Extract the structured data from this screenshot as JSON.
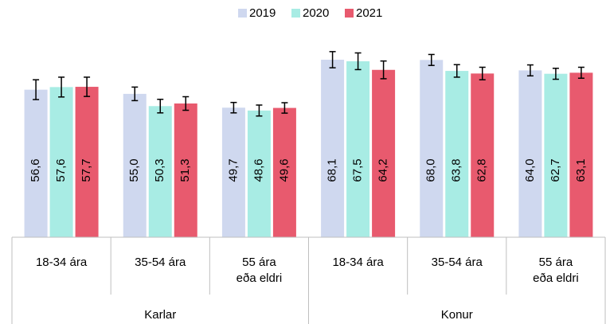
{
  "chart_data": {
    "type": "bar",
    "groups": [
      "Karlar",
      "Konur"
    ],
    "categories": [
      [
        "18-34 ára"
      ],
      [
        "35-54 ára"
      ],
      [
        "55 ára",
        "eða eldri"
      ],
      [
        "18-34 ára"
      ],
      [
        "35-54 ára"
      ],
      [
        "55 ára",
        "eða eldri"
      ]
    ],
    "series": [
      {
        "name": "2019",
        "color": "#cfd8ef",
        "values": [
          56.6,
          55.0,
          49.7,
          68.1,
          68.0,
          64.0
        ],
        "value_labels": [
          "56,6",
          "55,0",
          "49,7",
          "68,1",
          "68,0",
          "64,0"
        ],
        "errors": [
          3.8,
          2.6,
          2.0,
          3.1,
          2.1,
          2.1
        ]
      },
      {
        "name": "2020",
        "color": "#a8ece4",
        "values": [
          57.6,
          50.3,
          48.6,
          67.5,
          63.8,
          62.7
        ],
        "value_labels": [
          "57,6",
          "50,3",
          "48,6",
          "67,5",
          "63,8",
          "62,7"
        ],
        "errors": [
          3.8,
          2.6,
          2.1,
          3.2,
          2.4,
          2.1
        ]
      },
      {
        "name": "2021",
        "color": "#e85a6e",
        "values": [
          57.7,
          51.3,
          49.6,
          64.2,
          62.8,
          63.1
        ],
        "value_labels": [
          "57,7",
          "51,3",
          "49,6",
          "64,2",
          "62,8",
          "63,1"
        ],
        "errors": [
          3.7,
          2.6,
          2.0,
          3.4,
          2.4,
          2.1
        ]
      }
    ],
    "ylim": [
      0,
      91
    ]
  }
}
